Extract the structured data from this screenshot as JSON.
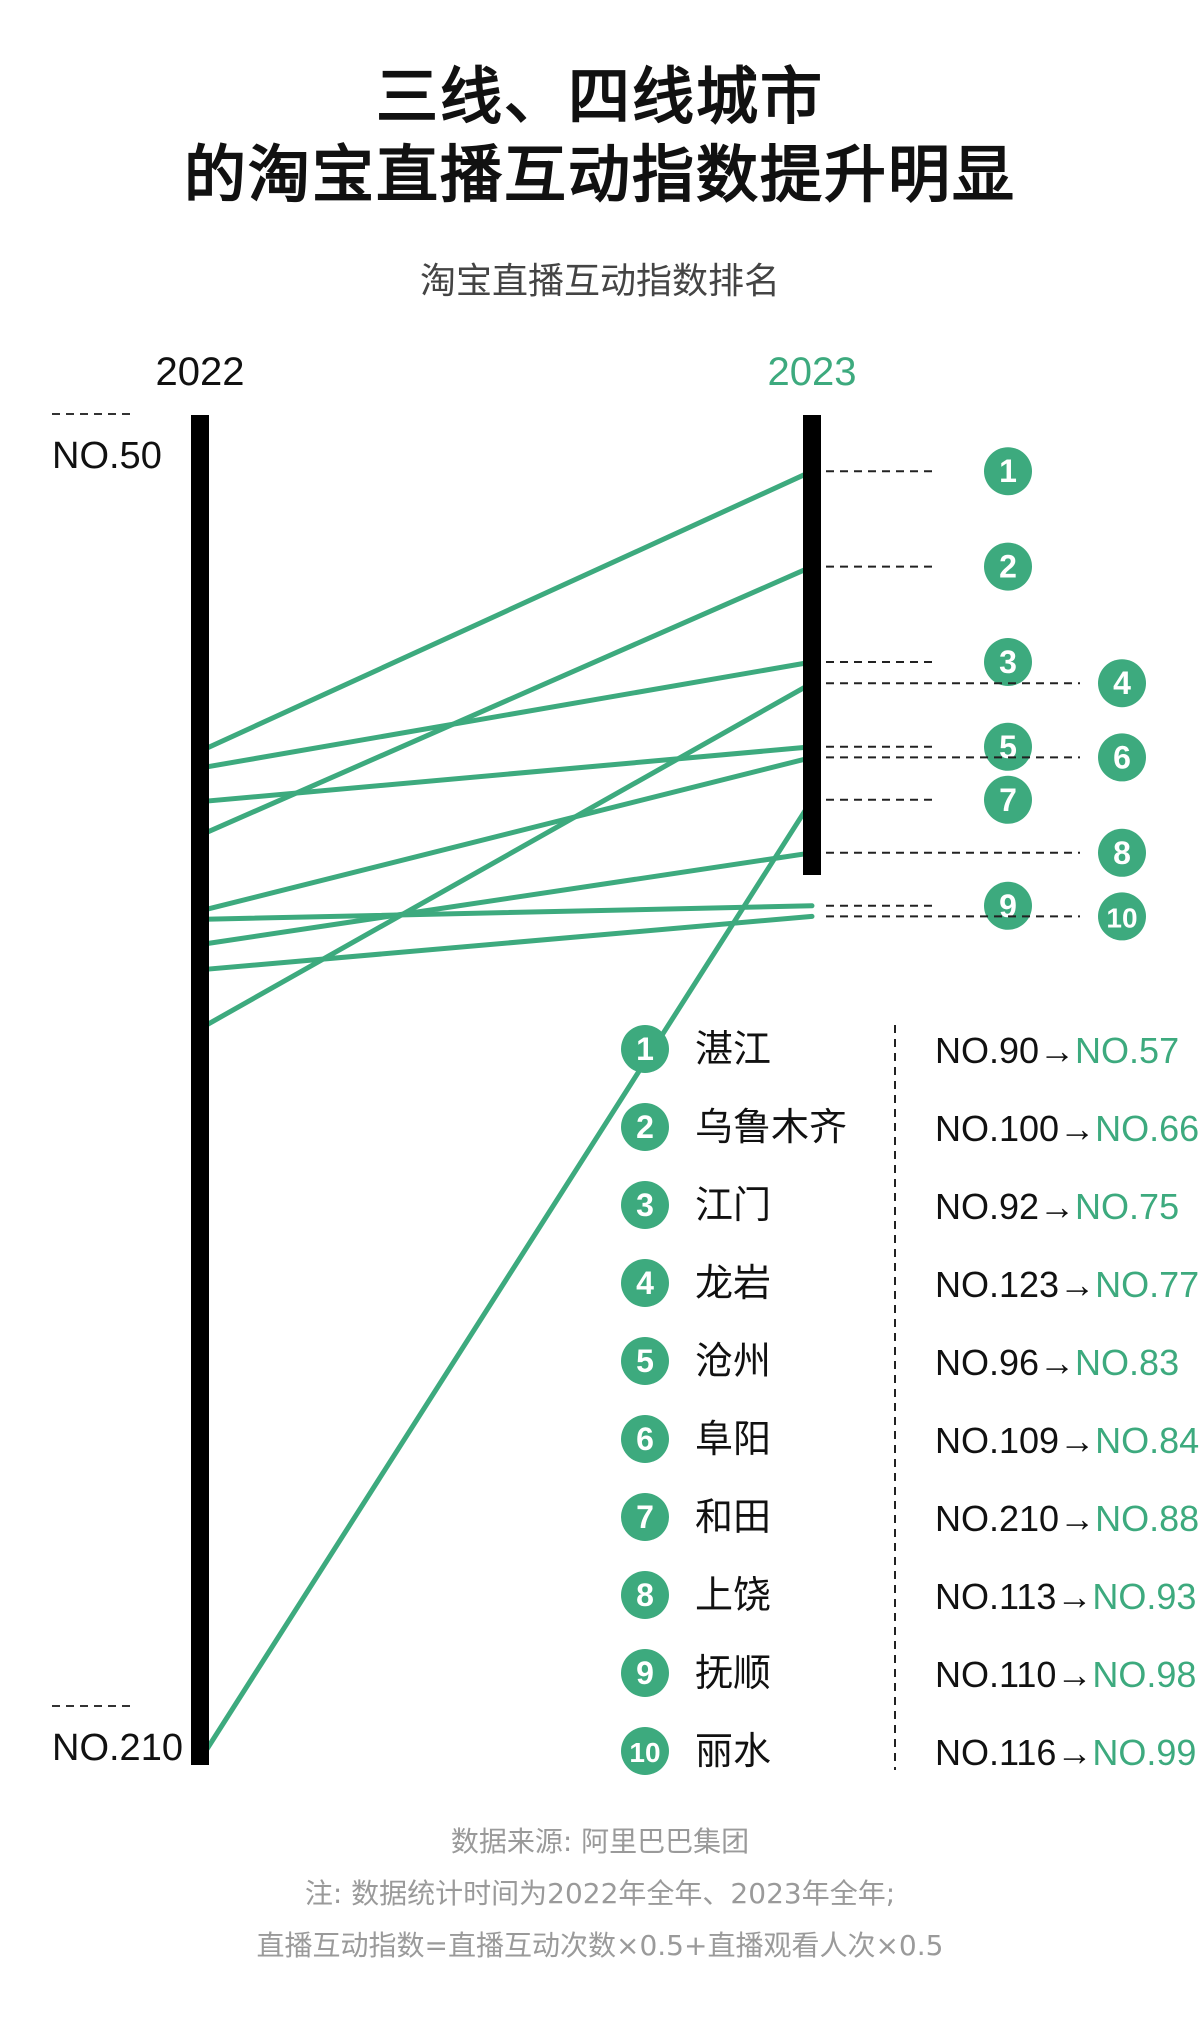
{
  "title_line1": "三线、四线城市",
  "title_line2": "的淘宝直播互动指数提升明显",
  "subtitle": "淘宝直播互动指数排名",
  "source": "数据来源: 阿里巴巴集团",
  "note1": "注: 数据统计时间为2022年全年、2023年全年;",
  "note2": "直播互动指数=直播互动次数×0.5+直播观看人次×0.5",
  "colors": {
    "accent": "#3daa7e",
    "axis": "#000000",
    "text": "#111111",
    "muted": "#9a9a9a"
  },
  "chart_data": {
    "type": "slope",
    "x_labels": [
      "2022",
      "2023"
    ],
    "left_axis_labels": [
      "NO.50",
      "NO.210"
    ],
    "left_range": [
      50,
      210
    ],
    "right_range": [
      50,
      105
    ],
    "cities": [
      {
        "rank": "1",
        "name": "湛江",
        "from_label": "NO.90",
        "to_label": "NO.57",
        "from": 90,
        "to": 57
      },
      {
        "rank": "2",
        "name": "乌鲁木齐",
        "from_label": "NO.100",
        "to_label": "NO.66",
        "from": 100,
        "to": 66
      },
      {
        "rank": "3",
        "name": "江门",
        "from_label": "NO.92",
        "to_label": "NO.75",
        "from": 92,
        "to": 75
      },
      {
        "rank": "4",
        "name": "龙岩",
        "from_label": "NO.123",
        "to_label": "NO.77",
        "from": 123,
        "to": 77
      },
      {
        "rank": "5",
        "name": "沧州",
        "from_label": "NO.96",
        "to_label": "NO.83",
        "from": 96,
        "to": 83
      },
      {
        "rank": "6",
        "name": "阜阳",
        "from_label": "NO.109",
        "to_label": "NO.84",
        "from": 109,
        "to": 84
      },
      {
        "rank": "7",
        "name": "和田",
        "from_label": "NO.210",
        "to_label": "NO.88",
        "from": 210,
        "to": 88
      },
      {
        "rank": "8",
        "name": "上饶",
        "from_label": "NO.113",
        "to_label": "NO.93",
        "from": 113,
        "to": 93
      },
      {
        "rank": "9",
        "name": "抚顺",
        "from_label": "NO.110",
        "to_label": "NO.98",
        "from": 110,
        "to": 98
      },
      {
        "rank": "10",
        "name": "丽水",
        "from_label": "NO.116",
        "to_label": "NO.99",
        "from": 116,
        "to": 99
      }
    ]
  }
}
